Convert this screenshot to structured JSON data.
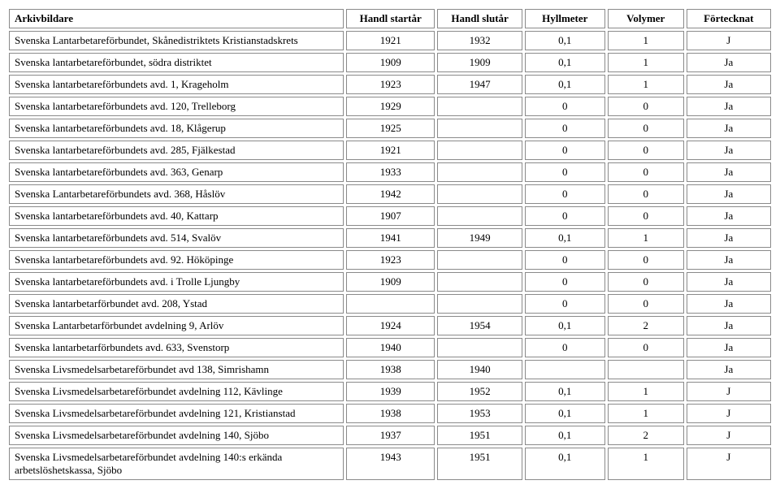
{
  "table": {
    "headers": [
      "Arkivbildare",
      "Handl startår",
      "Handl slutår",
      "Hyllmeter",
      "Volymer",
      "Förtecknat"
    ],
    "rows": [
      [
        "Svenska Lantarbetareförbundet, Skånedistriktets Kristianstadskrets",
        "1921",
        "1932",
        "0,1",
        "1",
        "J"
      ],
      [
        "Svenska lantarbetareförbundet, södra distriktet",
        "1909",
        "1909",
        "0,1",
        "1",
        "Ja"
      ],
      [
        "Svenska lantarbetareförbundets avd. 1, Krageholm",
        "1923",
        "1947",
        "0,1",
        "1",
        "Ja"
      ],
      [
        "Svenska lantarbetareförbundets avd. 120, Trelleborg",
        "1929",
        "",
        "0",
        "0",
        "Ja"
      ],
      [
        "Svenska lantarbetareförbundets avd. 18, Klågerup",
        "1925",
        "",
        "0",
        "0",
        "Ja"
      ],
      [
        "Svenska lantarbetareförbundets avd. 285, Fjälkestad",
        "1921",
        "",
        "0",
        "0",
        "Ja"
      ],
      [
        "Svenska lantarbetareförbundets avd. 363, Genarp",
        "1933",
        "",
        "0",
        "0",
        "Ja"
      ],
      [
        "Svenska Lantarbetareförbundets avd. 368, Håslöv",
        "1942",
        "",
        "0",
        "0",
        "Ja"
      ],
      [
        "Svenska lantarbetareförbundets avd. 40, Kattarp",
        "1907",
        "",
        "0",
        "0",
        "Ja"
      ],
      [
        "Svenska lantarbetareförbundets avd. 514, Svalöv",
        "1941",
        "1949",
        "0,1",
        "1",
        "Ja"
      ],
      [
        "Svenska lantarbetareförbundets avd. 92. Hököpinge",
        "1923",
        "",
        "0",
        "0",
        "Ja"
      ],
      [
        "Svenska lantarbetareförbundets avd. i Trolle Ljungby",
        "1909",
        "",
        "0",
        "0",
        "Ja"
      ],
      [
        "Svenska lantarbetarförbundet avd. 208, Ystad",
        "",
        "",
        "0",
        "0",
        "Ja"
      ],
      [
        "Svenska Lantarbetarförbundet avdelning 9, Arlöv",
        "1924",
        "1954",
        "0,1",
        "2",
        "Ja"
      ],
      [
        "Svenska lantarbetarförbundets avd. 633, Svenstorp",
        "1940",
        "",
        "0",
        "0",
        "Ja"
      ],
      [
        "Svenska Livsmedelsarbetareförbundet avd 138, Simrishamn",
        "1938",
        "1940",
        "",
        "",
        "Ja"
      ],
      [
        "Svenska Livsmedelsarbetareförbundet avdelning 112, Kävlinge",
        "1939",
        "1952",
        "0,1",
        "1",
        "J"
      ],
      [
        "Svenska Livsmedelsarbetareförbundet avdelning 121, Kristianstad",
        "1938",
        "1953",
        "0,1",
        "1",
        "J"
      ],
      [
        "Svenska Livsmedelsarbetareförbundet avdelning 140, Sjöbo",
        "1937",
        "1951",
        "0,1",
        "2",
        "J"
      ],
      [
        "Svenska Livsmedelsarbetareförbundet avdelning 140:s erkända arbetslöshetskassa, Sjöbo",
        "1943",
        "1951",
        "0,1",
        "1",
        "J"
      ]
    ]
  }
}
